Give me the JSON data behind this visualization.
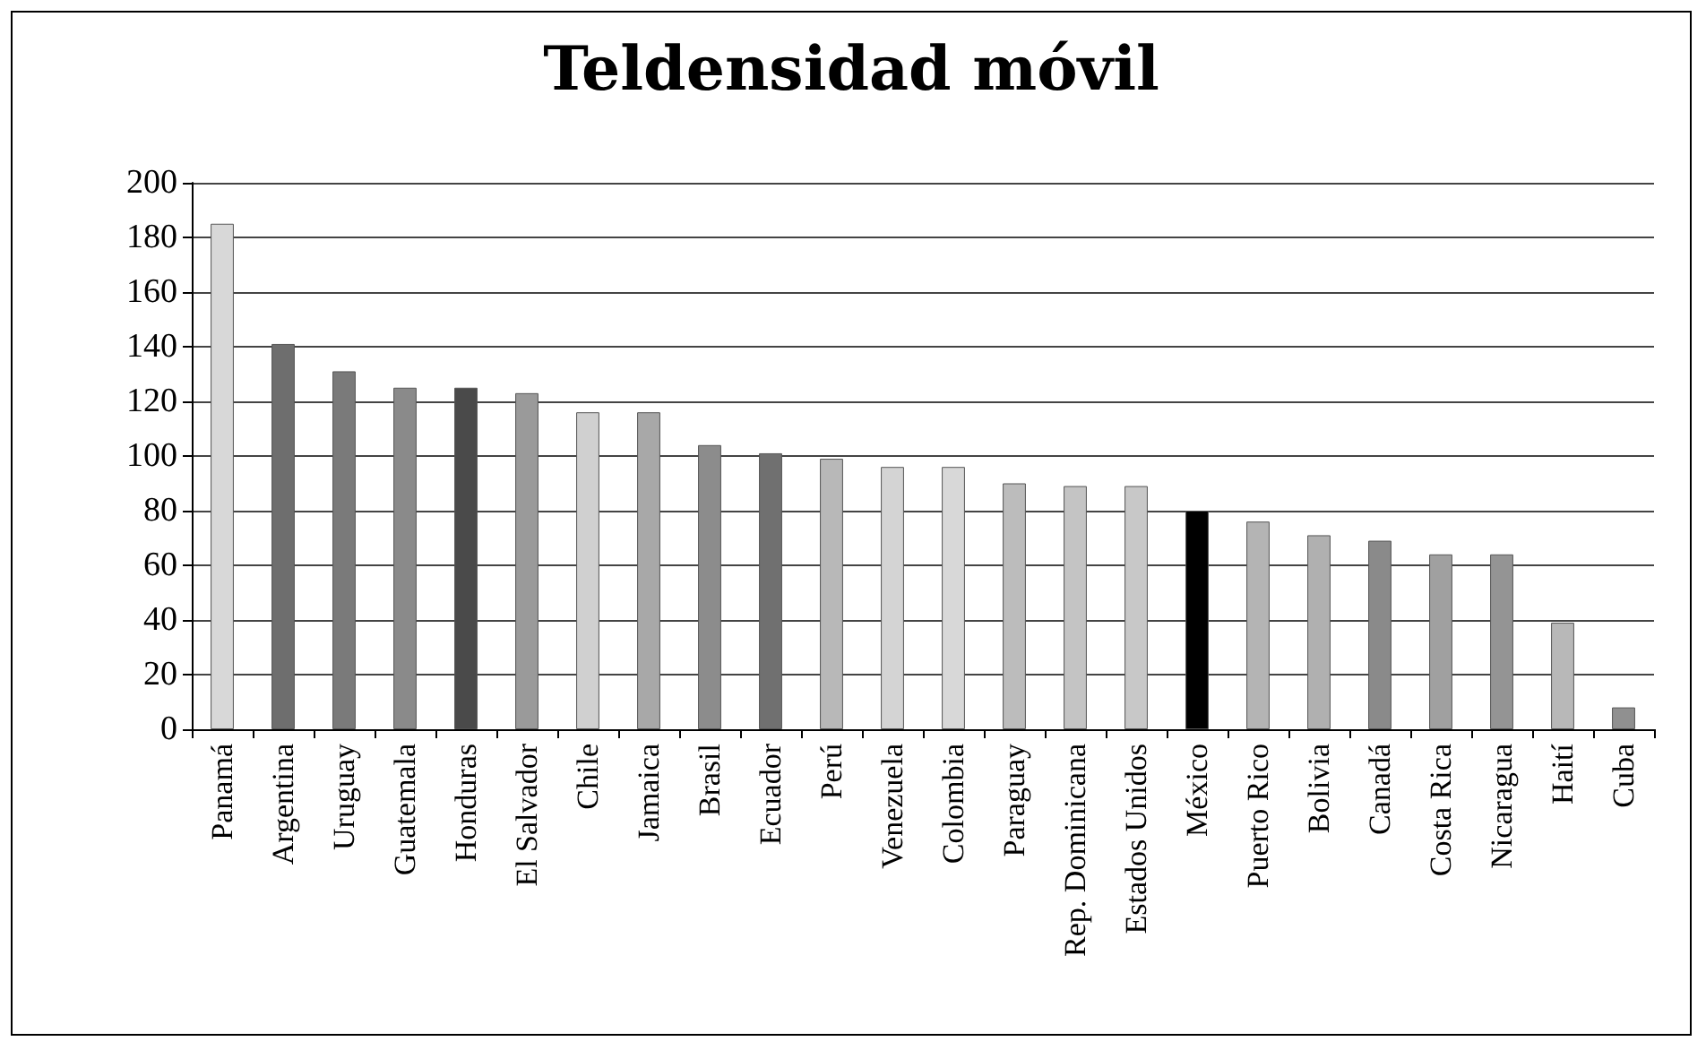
{
  "chart_data": {
    "type": "bar",
    "title": "Teldensidad móvil",
    "categories": [
      "Panamá",
      "Argentina",
      "Uruguay",
      "Guatemala",
      "Honduras",
      "El Salvador",
      "Chile",
      "Jamaica",
      "Brasil",
      "Ecuador",
      "Perú",
      "Venezuela",
      "Colombia",
      "Paraguay",
      "Rep. Dominicana",
      "Estados Unidos",
      "México",
      "Puerto Rico",
      "Bolivia",
      "Canadá",
      "Costa Rica",
      "Nicaragua",
      "Haití",
      "Cuba"
    ],
    "values": [
      185,
      141,
      131,
      125,
      125,
      123,
      116,
      116,
      104,
      101,
      99,
      96,
      96,
      90,
      89,
      89,
      80,
      76,
      71,
      69,
      64,
      64,
      39,
      8
    ],
    "colors": [
      "#d8d8d8",
      "#6e6e6e",
      "#7a7a7a",
      "#8a8a8a",
      "#4a4a4a",
      "#9a9a9a",
      "#d0d0d0",
      "#a8a8a8",
      "#8c8c8c",
      "#707070",
      "#b8b8b8",
      "#d4d4d4",
      "#d8d8d8",
      "#bcbcbc",
      "#c4c4c4",
      "#c8c8c8",
      "#000000",
      "#b4b4b4",
      "#b0b0b0",
      "#8a8a8a",
      "#a0a0a0",
      "#949494",
      "#b8b8b8",
      "#909090"
    ],
    "ylim": [
      0,
      200
    ],
    "yticks": [
      0,
      20,
      40,
      60,
      80,
      100,
      120,
      140,
      160,
      180,
      200
    ],
    "grid": "y"
  }
}
